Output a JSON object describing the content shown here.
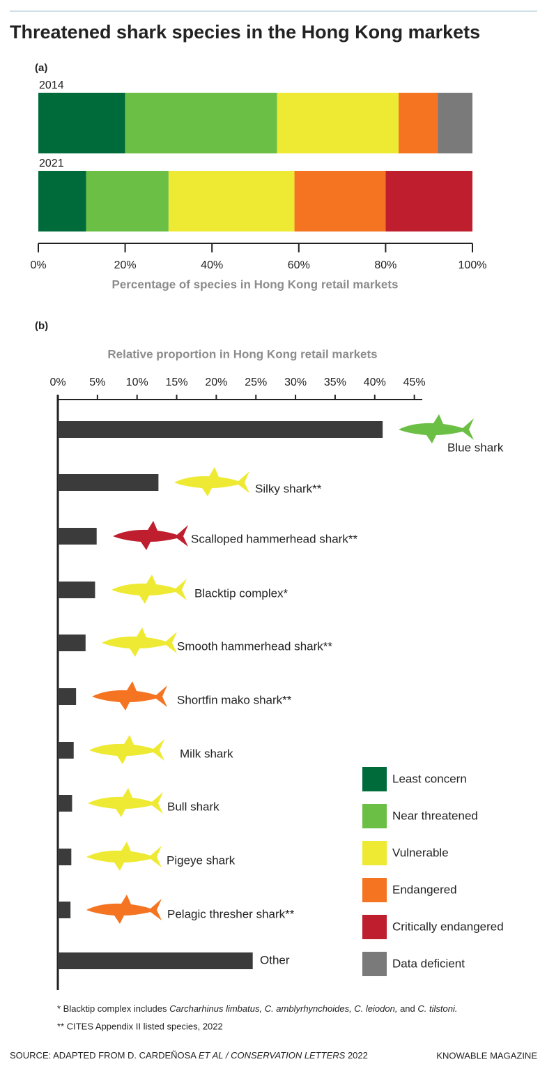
{
  "title": "Threatened shark species in the Hong Kong markets",
  "chart_data": [
    {
      "type": "stacked_bar",
      "panel_label": "(a)",
      "x_label": "Percentage of species in Hong Kong retail markets",
      "categories": [
        "2014",
        "2021"
      ],
      "series": [
        {
          "name": "Least concern",
          "color": "#006b3a",
          "values": [
            20,
            11
          ]
        },
        {
          "name": "Near threatened",
          "color": "#6cbf45",
          "values": [
            35,
            19
          ]
        },
        {
          "name": "Vulnerable",
          "color": "#eeea33",
          "values": [
            28,
            29
          ]
        },
        {
          "name": "Endangered",
          "color": "#f47421",
          "values": [
            9,
            21
          ]
        },
        {
          "name": "Critically endangered",
          "color": "#be1e2d",
          "values": [
            0,
            20
          ]
        },
        {
          "name": "Data deficient",
          "color": "#7a7a7a",
          "values": [
            8,
            0
          ]
        }
      ],
      "xlim": [
        0,
        100
      ],
      "xticks": [
        {
          "value": 0,
          "label": "0%"
        },
        {
          "value": 20,
          "label": "20%"
        },
        {
          "value": 40,
          "label": "40%"
        },
        {
          "value": 60,
          "label": "60%"
        },
        {
          "value": 80,
          "label": "80%"
        },
        {
          "value": 100,
          "label": "100%"
        }
      ]
    },
    {
      "type": "bar",
      "panel_label": "(b)",
      "x_label": "Relative proportion in Hong Kong retail markets",
      "categories": [
        "Blue shark",
        "Silky shark**",
        "Scalloped hammerhead shark**",
        "Blacktip complex*",
        "Smooth hammerhead shark**",
        "Shortfin mako shark**",
        "Milk shark",
        "Bull shark",
        "Pigeye shark",
        "Pelagic thresher shark**",
        "Other"
      ],
      "values": [
        41.0,
        12.7,
        4.9,
        4.7,
        3.5,
        2.3,
        2.0,
        1.8,
        1.7,
        1.6,
        24.6
      ],
      "color": "#3b3b3b",
      "icon_colors": [
        "#6cbf45",
        "#eeea33",
        "#be1e2d",
        "#eeea33",
        "#eeea33",
        "#f47421",
        "#eeea33",
        "#eeea33",
        "#eeea33",
        "#f47421",
        null
      ],
      "xlim": [
        0,
        46
      ],
      "xticks": [
        {
          "value": 0,
          "label": "0%"
        },
        {
          "value": 5,
          "label": "5%"
        },
        {
          "value": 10,
          "label": "10%"
        },
        {
          "value": 15,
          "label": "15%"
        },
        {
          "value": 20,
          "label": "20%"
        },
        {
          "value": 25,
          "label": "25%"
        },
        {
          "value": 30,
          "label": "30%"
        },
        {
          "value": 35,
          "label": "35%"
        },
        {
          "value": 40,
          "label": "40%"
        },
        {
          "value": 45,
          "label": "45%"
        }
      ]
    }
  ],
  "footnotes": [
    [
      "* Blacktip complex includes ",
      "Carcharhinus limbatus, C. amblyrhynchoides, C. leiodon,",
      " and ",
      "C. tilstoni."
    ],
    [
      "** CITES Appendix II listed species, 2022"
    ]
  ],
  "source": [
    "SOURCE: ADAPTED FROM D. CARDEÑOSA ",
    "ET AL / CONSERVATION LETTERS",
    " 2022"
  ],
  "credit": "KNOWABLE MAGAZINE"
}
